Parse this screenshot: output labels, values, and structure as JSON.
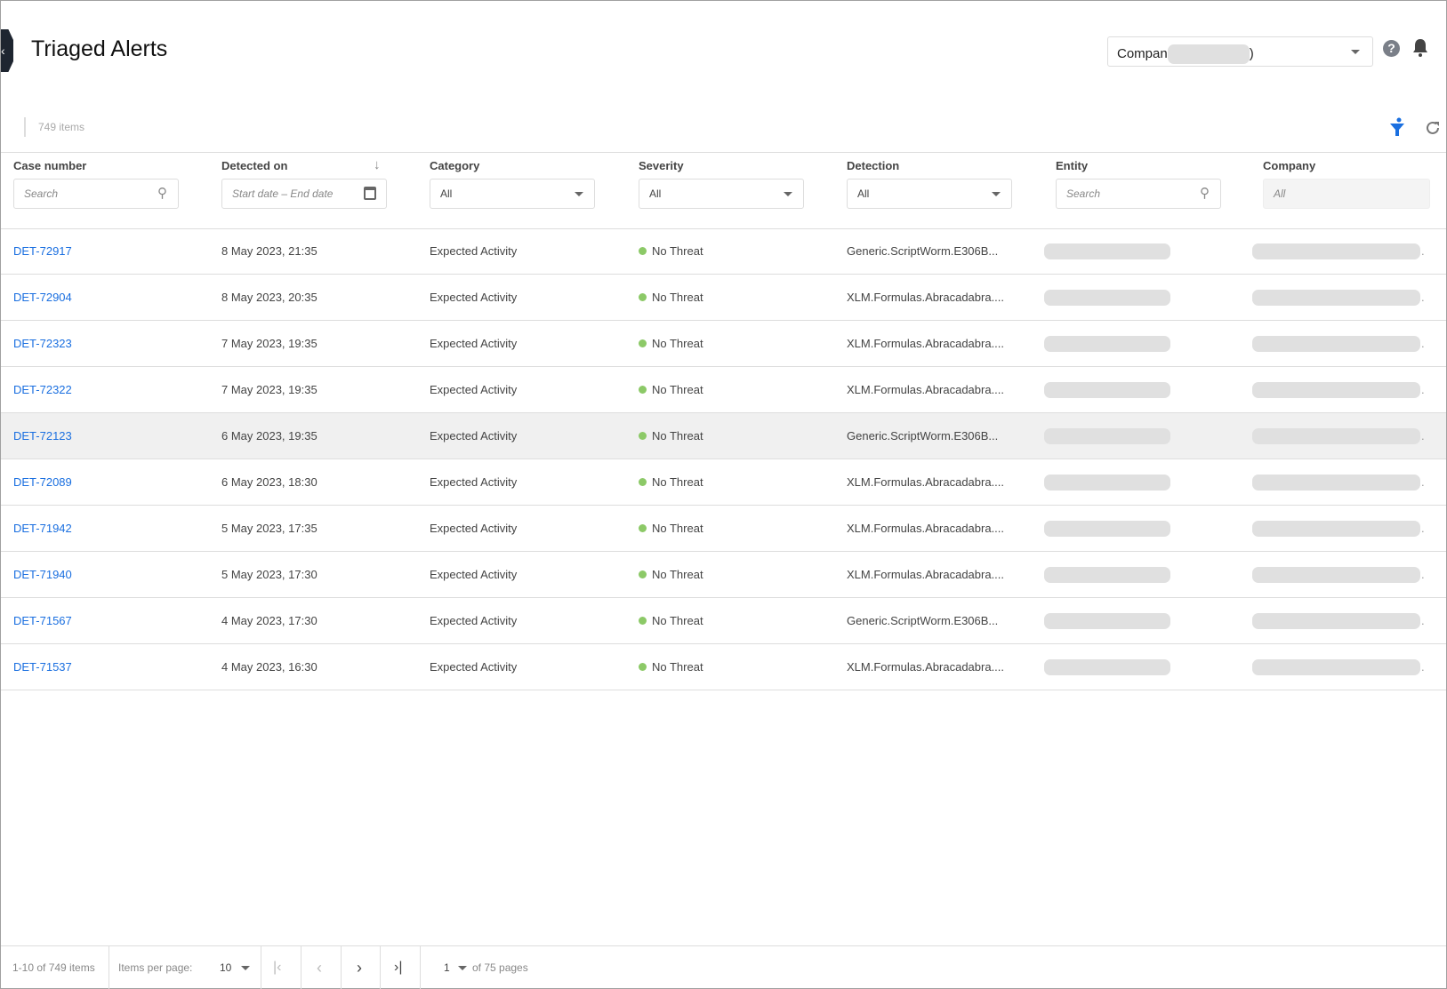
{
  "header": {
    "title": "Triaged Alerts",
    "company_select_prefix": "Compan",
    "company_select_suffix": ")"
  },
  "toolbar": {
    "item_count": "749 items"
  },
  "columns": [
    {
      "label": "Case number",
      "filter": "Search"
    },
    {
      "label": "Detected on",
      "filter_start": "Start date",
      "filter_sep": "–",
      "filter_end": "End date"
    },
    {
      "label": "Category",
      "filter": "All"
    },
    {
      "label": "Severity",
      "filter": "All"
    },
    {
      "label": "Detection",
      "filter": "All"
    },
    {
      "label": "Entity",
      "filter": "Search"
    },
    {
      "label": "Company",
      "filter": "All"
    }
  ],
  "rows": [
    {
      "case": "DET-72917",
      "date": "8 May 2023, 21:35",
      "category": "Expected Activity",
      "severity": "No Threat",
      "detection": "Generic.ScriptWorm.E306B..."
    },
    {
      "case": "DET-72904",
      "date": "8 May 2023, 20:35",
      "category": "Expected Activity",
      "severity": "No Threat",
      "detection": "XLM.Formulas.Abracadabra...."
    },
    {
      "case": "DET-72323",
      "date": "7 May 2023, 19:35",
      "category": "Expected Activity",
      "severity": "No Threat",
      "detection": "XLM.Formulas.Abracadabra...."
    },
    {
      "case": "DET-72322",
      "date": "7 May 2023, 19:35",
      "category": "Expected Activity",
      "severity": "No Threat",
      "detection": "XLM.Formulas.Abracadabra...."
    },
    {
      "case": "DET-72123",
      "date": "6 May 2023, 19:35",
      "category": "Expected Activity",
      "severity": "No Threat",
      "detection": "Generic.ScriptWorm.E306B..."
    },
    {
      "case": "DET-72089",
      "date": "6 May 2023, 18:30",
      "category": "Expected Activity",
      "severity": "No Threat",
      "detection": "XLM.Formulas.Abracadabra...."
    },
    {
      "case": "DET-71942",
      "date": "5 May 2023, 17:35",
      "category": "Expected Activity",
      "severity": "No Threat",
      "detection": "XLM.Formulas.Abracadabra...."
    },
    {
      "case": "DET-71940",
      "date": "5 May 2023, 17:30",
      "category": "Expected Activity",
      "severity": "No Threat",
      "detection": "XLM.Formulas.Abracadabra...."
    },
    {
      "case": "DET-71567",
      "date": "4 May 2023, 17:30",
      "category": "Expected Activity",
      "severity": "No Threat",
      "detection": "Generic.ScriptWorm.E306B..."
    },
    {
      "case": "DET-71537",
      "date": "4 May 2023, 16:30",
      "category": "Expected Activity",
      "severity": "No Threat",
      "detection": "XLM.Formulas.Abracadabra...."
    }
  ],
  "footer": {
    "range": "1-10 of 749 items",
    "per_page_label": "Items per page:",
    "per_page": "10",
    "page": "1",
    "of_pages": "of 75 pages"
  },
  "colors": {
    "accent": "#1a6fe0",
    "no_threat": "#8cc967",
    "highlight_row": "#f0f0f0"
  }
}
